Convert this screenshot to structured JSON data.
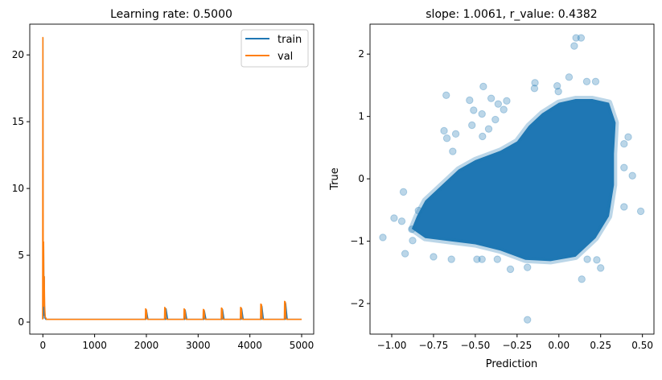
{
  "chart_data": [
    {
      "type": "line",
      "title": "Learning rate: 0.5000",
      "xlabel": "",
      "ylabel": "",
      "xlim": [
        -253,
        5233
      ],
      "ylim": [
        -0.9,
        22.3
      ],
      "xticks": [
        0,
        1000,
        2000,
        3000,
        4000,
        5000
      ],
      "xtick_labels": [
        "0",
        "1000",
        "2000",
        "3000",
        "4000",
        "5000"
      ],
      "yticks": [
        0,
        5,
        10,
        15,
        20
      ],
      "ytick_labels": [
        "0",
        "5",
        "10",
        "15",
        "20"
      ],
      "grid": false,
      "legend": "top-right",
      "series": [
        {
          "name": "train",
          "color": "#1f77b4",
          "points": [
            [
              0,
              21.3
            ],
            [
              4,
              1.6
            ],
            [
              8,
              0.3
            ],
            [
              14,
              6.0
            ],
            [
              20,
              0.5
            ],
            [
              26,
              3.4
            ],
            [
              32,
              1.2
            ],
            [
              42,
              0.3
            ],
            [
              60,
              0.2
            ],
            [
              1990,
              0.2
            ],
            [
              2000,
              0.9
            ],
            [
              2030,
              0.2
            ],
            [
              2370,
              0.2
            ],
            [
              2380,
              1.0
            ],
            [
              2410,
              0.2
            ],
            [
              2740,
              0.2
            ],
            [
              2750,
              0.9
            ],
            [
              2780,
              0.2
            ],
            [
              3110,
              0.2
            ],
            [
              3120,
              0.85
            ],
            [
              3150,
              0.2
            ],
            [
              3460,
              0.2
            ],
            [
              3470,
              0.95
            ],
            [
              3500,
              0.2
            ],
            [
              3830,
              0.2
            ],
            [
              3840,
              1.0
            ],
            [
              3870,
              0.2
            ],
            [
              4220,
              0.2
            ],
            [
              4230,
              1.2
            ],
            [
              4260,
              0.2
            ],
            [
              4680,
              0.2
            ],
            [
              4690,
              1.4
            ],
            [
              4720,
              0.2
            ],
            [
              5000,
              0.2
            ]
          ]
        },
        {
          "name": "val",
          "color": "#ff7f0e",
          "points": [
            [
              -5,
              0.2
            ],
            [
              0,
              21.3
            ],
            [
              3,
              12.3
            ],
            [
              8,
              3.0
            ],
            [
              14,
              6.0
            ],
            [
              20,
              1.2
            ],
            [
              26,
              3.4
            ],
            [
              34,
              1.2
            ],
            [
              45,
              0.4
            ],
            [
              70,
              0.2
            ],
            [
              1980,
              0.2
            ],
            [
              1985,
              1.0
            ],
            [
              2000,
              0.9
            ],
            [
              2010,
              0.3
            ],
            [
              2025,
              0.2
            ],
            [
              2350,
              0.2
            ],
            [
              2355,
              1.1
            ],
            [
              2370,
              1.0
            ],
            [
              2380,
              0.3
            ],
            [
              2395,
              0.2
            ],
            [
              2725,
              0.2
            ],
            [
              2730,
              1.0
            ],
            [
              2745,
              0.9
            ],
            [
              2755,
              0.3
            ],
            [
              2770,
              0.2
            ],
            [
              3095,
              0.2
            ],
            [
              3100,
              0.95
            ],
            [
              3115,
              0.9
            ],
            [
              3125,
              0.3
            ],
            [
              3140,
              0.2
            ],
            [
              3445,
              0.2
            ],
            [
              3450,
              1.05
            ],
            [
              3465,
              1.0
            ],
            [
              3475,
              0.3
            ],
            [
              3490,
              0.2
            ],
            [
              3815,
              0.2
            ],
            [
              3820,
              1.1
            ],
            [
              3835,
              1.05
            ],
            [
              3845,
              0.3
            ],
            [
              3860,
              0.2
            ],
            [
              4205,
              0.2
            ],
            [
              4210,
              1.35
            ],
            [
              4225,
              1.3
            ],
            [
              4235,
              0.3
            ],
            [
              4250,
              0.2
            ],
            [
              4665,
              0.2
            ],
            [
              4670,
              1.55
            ],
            [
              4685,
              1.5
            ],
            [
              4695,
              0.3
            ],
            [
              4710,
              0.2
            ],
            [
              5000,
              0.2
            ]
          ]
        }
      ]
    },
    {
      "type": "scatter",
      "title": "slope: 1.0061, r_value: 0.4382",
      "xlabel": "Prediction",
      "ylabel": "True",
      "xlim": [
        -1.13,
        0.569
      ],
      "ylim": [
        -2.49,
        2.48
      ],
      "xticks": [
        -1.0,
        -0.75,
        -0.5,
        -0.25,
        0.0,
        0.25,
        0.5
      ],
      "xtick_labels": [
        "−1.00",
        "−0.75",
        "−0.50",
        "−0.25",
        "0.00",
        "0.25",
        "0.50"
      ],
      "yticks": [
        -2,
        -1,
        0,
        1,
        2
      ],
      "ytick_labels": [
        "−2",
        "−1",
        "0",
        "1",
        "2"
      ],
      "grid": false,
      "color": "#1f77b4",
      "alpha": 0.3,
      "dense_region": [
        [
          -0.85,
          -0.6
        ],
        [
          -0.8,
          -0.35
        ],
        [
          -0.7,
          -0.1
        ],
        [
          -0.6,
          0.15
        ],
        [
          -0.5,
          0.3
        ],
        [
          -0.35,
          0.45
        ],
        [
          -0.25,
          0.6
        ],
        [
          -0.18,
          0.85
        ],
        [
          -0.1,
          1.05
        ],
        [
          0.0,
          1.22
        ],
        [
          0.1,
          1.28
        ],
        [
          0.2,
          1.28
        ],
        [
          0.3,
          1.22
        ],
        [
          0.34,
          0.9
        ],
        [
          0.33,
          0.4
        ],
        [
          0.33,
          -0.1
        ],
        [
          0.3,
          -0.6
        ],
        [
          0.22,
          -0.95
        ],
        [
          0.1,
          -1.25
        ],
        [
          -0.05,
          -1.32
        ],
        [
          -0.2,
          -1.3
        ],
        [
          -0.35,
          -1.15
        ],
        [
          -0.5,
          -1.05
        ],
        [
          -0.65,
          -1.0
        ],
        [
          -0.8,
          -0.95
        ],
        [
          -0.88,
          -0.8
        ]
      ],
      "points": [
        [
          -1.053,
          -0.94
        ],
        [
          -0.986,
          -0.63
        ],
        [
          -0.93,
          -0.21
        ],
        [
          -0.92,
          -1.2
        ],
        [
          -0.94,
          -0.68
        ],
        [
          -0.75,
          -1.25
        ],
        [
          -0.674,
          1.34
        ],
        [
          -0.687,
          0.77
        ],
        [
          -0.67,
          0.65
        ],
        [
          -0.617,
          0.72
        ],
        [
          -0.635,
          0.44
        ],
        [
          -0.534,
          1.26
        ],
        [
          -0.52,
          0.86
        ],
        [
          -0.51,
          1.1
        ],
        [
          -0.452,
          1.48
        ],
        [
          -0.46,
          1.04
        ],
        [
          -0.457,
          0.68
        ],
        [
          -0.42,
          0.8
        ],
        [
          -0.405,
          1.29
        ],
        [
          -0.363,
          1.2
        ],
        [
          -0.312,
          1.25
        ],
        [
          -0.33,
          1.11
        ],
        [
          -0.38,
          0.95
        ],
        [
          -0.29,
          -1.45
        ],
        [
          -0.188,
          -2.26
        ],
        [
          -0.188,
          -1.42
        ],
        [
          -0.146,
          1.45
        ],
        [
          -0.143,
          1.54
        ],
        [
          -0.01,
          1.49
        ],
        [
          -0.003,
          1.4
        ],
        [
          0.061,
          1.63
        ],
        [
          0.092,
          2.13
        ],
        [
          0.103,
          2.26
        ],
        [
          0.133,
          2.26
        ],
        [
          0.137,
          -1.61
        ],
        [
          0.167,
          1.56
        ],
        [
          0.22,
          1.56
        ],
        [
          0.415,
          0.67
        ],
        [
          0.44,
          0.05
        ],
        [
          0.49,
          -0.52
        ],
        [
          0.39,
          -0.45
        ],
        [
          0.39,
          0.18
        ],
        [
          0.39,
          0.56
        ],
        [
          0.25,
          -1.43
        ],
        [
          0.227,
          -1.3
        ],
        [
          0.17,
          -1.29
        ],
        [
          -0.368,
          -1.29
        ],
        [
          -0.49,
          -1.29
        ],
        [
          -0.643,
          -1.29
        ],
        [
          -0.46,
          -1.29
        ],
        [
          -0.875,
          -0.99
        ],
        [
          -0.88,
          -0.81
        ],
        [
          -0.84,
          -0.51
        ]
      ]
    }
  ]
}
